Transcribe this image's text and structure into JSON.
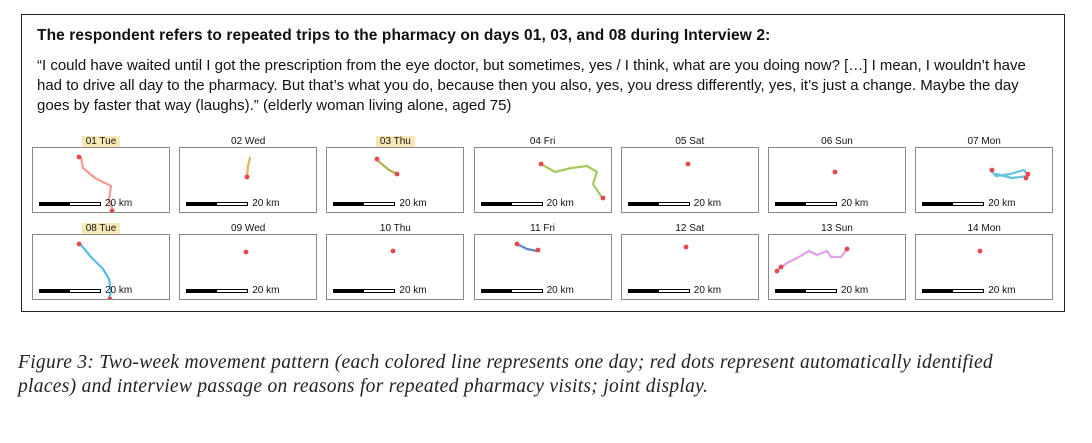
{
  "heading": "The respondent refers to repeated trips to the pharmacy on days 01, 03, and 08 during Interview 2:",
  "quote": "“I could have waited until I got the prescription from the eye doctor, but sometimes, yes / I think, what are you doing now? […] I mean, I wouldn’t have had to drive all day to the pharmacy. But that’s what you do, because then you also, yes, you dress differently, yes, it’s just a change. Maybe the day goes by faster that way (laughs).” (elderly woman living alone, aged 75)",
  "scale_label": "20 km",
  "colors": {
    "place_dot": "#e8474c",
    "highlight": "#f8e8b8"
  },
  "days": [
    {
      "label": "01 Tue",
      "highlighted": true,
      "line_color": "#f08a84",
      "points": [
        [
          48,
          10
        ],
        [
          50,
          20
        ],
        [
          62,
          30
        ],
        [
          78,
          38
        ],
        [
          76,
          52
        ],
        [
          80,
          62
        ]
      ],
      "places": [
        [
          46,
          9
        ],
        [
          79,
          63
        ]
      ]
    },
    {
      "label": "02 Wed",
      "highlighted": false,
      "line_color": "#e8a23c",
      "points": [
        [
          67,
          28
        ],
        [
          68,
          18
        ],
        [
          70,
          10
        ]
      ],
      "places": [
        [
          67,
          29
        ]
      ]
    },
    {
      "label": "03 Thu",
      "highlighted": true,
      "line_color": "#a8a030",
      "points": [
        [
          50,
          12
        ],
        [
          62,
          22
        ],
        [
          70,
          26
        ]
      ],
      "places": [
        [
          50,
          11
        ],
        [
          70,
          26
        ]
      ]
    },
    {
      "label": "04 Fri",
      "highlighted": false,
      "line_color": "#98c048",
      "points": [
        [
          66,
          16
        ],
        [
          80,
          24
        ],
        [
          96,
          20
        ],
        [
          112,
          18
        ],
        [
          122,
          24
        ],
        [
          118,
          36
        ],
        [
          126,
          48
        ]
      ],
      "places": [
        [
          66,
          16
        ],
        [
          128,
          50
        ]
      ]
    },
    {
      "label": "05 Sat",
      "highlighted": false,
      "line_color": "#e8474c",
      "points": [],
      "places": [
        [
          66,
          16
        ]
      ]
    },
    {
      "label": "06 Sun",
      "highlighted": false,
      "line_color": "#e8474c",
      "points": [],
      "places": [
        [
          66,
          24
        ]
      ]
    },
    {
      "label": "07 Mon",
      "highlighted": false,
      "line_color": "#4ab8d8",
      "points": [
        [
          74,
          22
        ],
        [
          80,
          28
        ],
        [
          94,
          26
        ],
        [
          108,
          22
        ],
        [
          112,
          28
        ],
        [
          96,
          30
        ],
        [
          80,
          26
        ]
      ],
      "places": [
        [
          112,
          26
        ],
        [
          110,
          30
        ],
        [
          76,
          22
        ]
      ]
    },
    {
      "label": "08 Tue",
      "highlighted": true,
      "line_color": "#3ab0e0",
      "points": [
        [
          48,
          10
        ],
        [
          58,
          22
        ],
        [
          70,
          34
        ],
        [
          76,
          44
        ],
        [
          78,
          56
        ],
        [
          76,
          64
        ]
      ],
      "places": [
        [
          46,
          9
        ],
        [
          77,
          64
        ]
      ]
    },
    {
      "label": "09 Wed",
      "highlighted": false,
      "line_color": "#e8474c",
      "points": [],
      "places": [
        [
          66,
          17
        ]
      ]
    },
    {
      "label": "10 Thu",
      "highlighted": false,
      "line_color": "#e8474c",
      "points": [],
      "places": [
        [
          66,
          16
        ]
      ]
    },
    {
      "label": "11 Fri",
      "highlighted": false,
      "line_color": "#4870c8",
      "points": [
        [
          42,
          9
        ],
        [
          52,
          14
        ],
        [
          62,
          16
        ]
      ],
      "places": [
        [
          42,
          9
        ],
        [
          63,
          15
        ]
      ]
    },
    {
      "label": "12 Sat",
      "highlighted": false,
      "line_color": "#e8474c",
      "points": [],
      "places": [
        [
          64,
          12
        ]
      ]
    },
    {
      "label": "13 Sun",
      "highlighted": false,
      "line_color": "#e090e0",
      "points": [
        [
          10,
          34
        ],
        [
          18,
          28
        ],
        [
          30,
          22
        ],
        [
          40,
          16
        ],
        [
          48,
          20
        ],
        [
          58,
          16
        ],
        [
          62,
          22
        ],
        [
          72,
          22
        ],
        [
          78,
          14
        ]
      ],
      "places": [
        [
          8,
          36
        ],
        [
          12,
          32
        ],
        [
          78,
          14
        ]
      ]
    },
    {
      "label": "14 Mon",
      "highlighted": false,
      "line_color": "#e8474c",
      "points": [],
      "places": [
        [
          64,
          16
        ]
      ]
    }
  ],
  "caption": "Figure 3: Two-week movement pattern (each colored line represents one day; red dots represent automatically identified places) and interview passage on reasons for repeated pharmacy visits; joint display."
}
